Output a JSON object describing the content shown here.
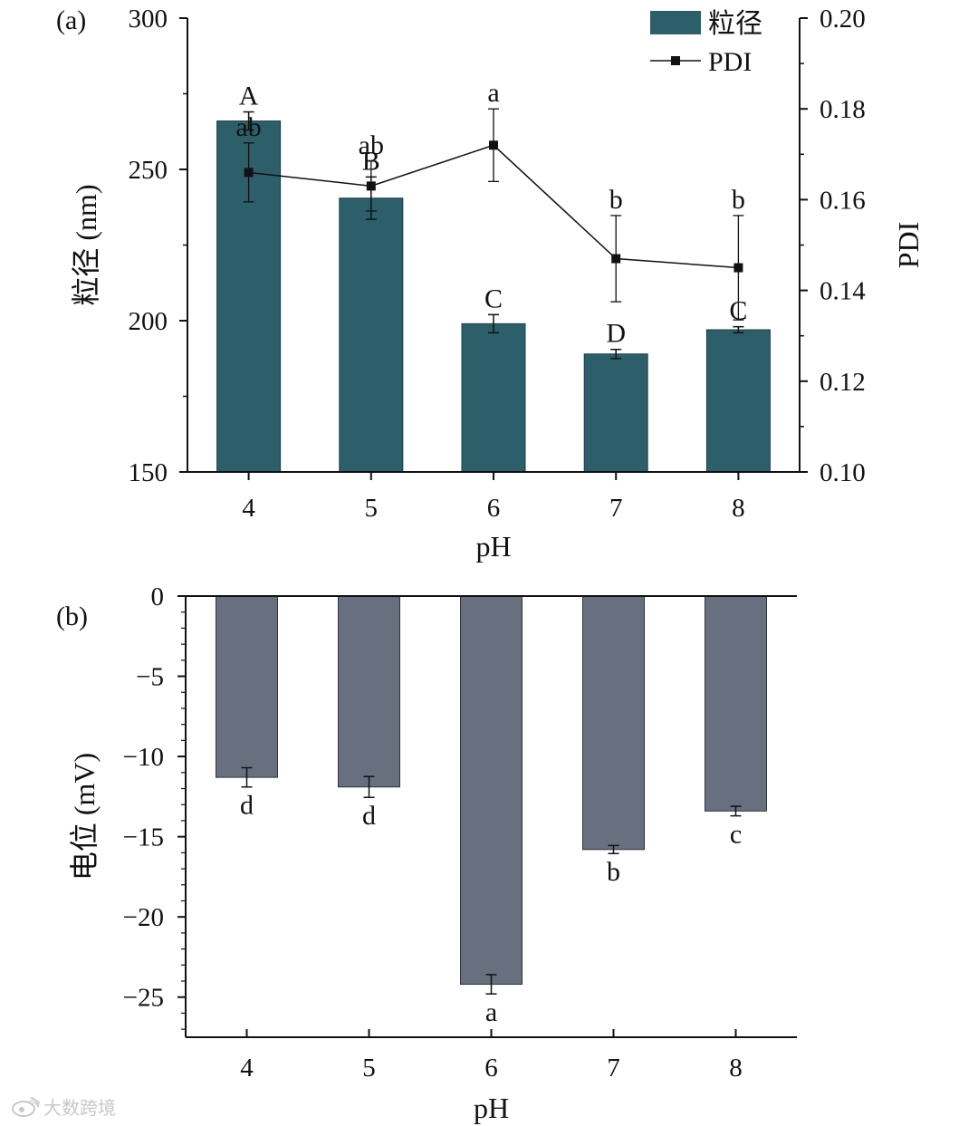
{
  "chart_data": [
    {
      "panel_label": "(a)",
      "type": "bar",
      "categories": [
        "4",
        "5",
        "6",
        "7",
        "8"
      ],
      "xlabel": "pH",
      "ylabel": "粒径 (nm)",
      "ylabel_right": "PDI",
      "ylim": [
        150,
        300
      ],
      "yticks": [
        "150",
        "200",
        "250",
        "300"
      ],
      "ylim_right": [
        0.1,
        0.2
      ],
      "yticks_right": [
        "0.10",
        "0.12",
        "0.14",
        "0.16",
        "0.18",
        "0.20"
      ],
      "legend": {
        "placement": "top-right",
        "bar_label": "粒径",
        "line_label": "PDI"
      },
      "series": [
        {
          "name": "粒径",
          "type": "bar",
          "axis": "left",
          "color": "#2d5f6b",
          "values": [
            266,
            240.5,
            199,
            189,
            197
          ],
          "errors": [
            3,
            7,
            3,
            1.5,
            1
          ],
          "labels": [
            "A",
            "B",
            "C",
            "D",
            "C"
          ]
        },
        {
          "name": "PDI",
          "type": "line",
          "axis": "right",
          "color": "#111111",
          "values": [
            0.166,
            0.163,
            0.172,
            0.147,
            0.145
          ],
          "errors": [
            0.0065,
            0.0055,
            0.008,
            0.0095,
            0.0115
          ],
          "labels": [
            "ab",
            "ab",
            "a",
            "b",
            "b"
          ]
        }
      ]
    },
    {
      "panel_label": "(b)",
      "type": "bar",
      "categories": [
        "4",
        "5",
        "6",
        "7",
        "8"
      ],
      "xlabel": "pH",
      "ylabel": "电位 (mV)",
      "ylim": [
        -27.5,
        0
      ],
      "yticks": [
        "0",
        "−5",
        "−10",
        "−15",
        "−20",
        "−25"
      ],
      "series": [
        {
          "name": "电位",
          "type": "bar",
          "color": "#68707f",
          "values": [
            -11.3,
            -11.9,
            -24.2,
            -15.8,
            -13.4
          ],
          "errors": [
            0.6,
            0.65,
            0.6,
            0.25,
            0.3
          ],
          "labels": [
            "d",
            "d",
            "a",
            "b",
            "c"
          ]
        }
      ]
    }
  ],
  "colors": {
    "bar_a": "#2d5f6b",
    "bar_b": "#68707f",
    "line": "#111111",
    "watermark": "#c8c8c8"
  },
  "watermark": {
    "icon": "weibo-logo-icon",
    "text": "大数跨境"
  }
}
